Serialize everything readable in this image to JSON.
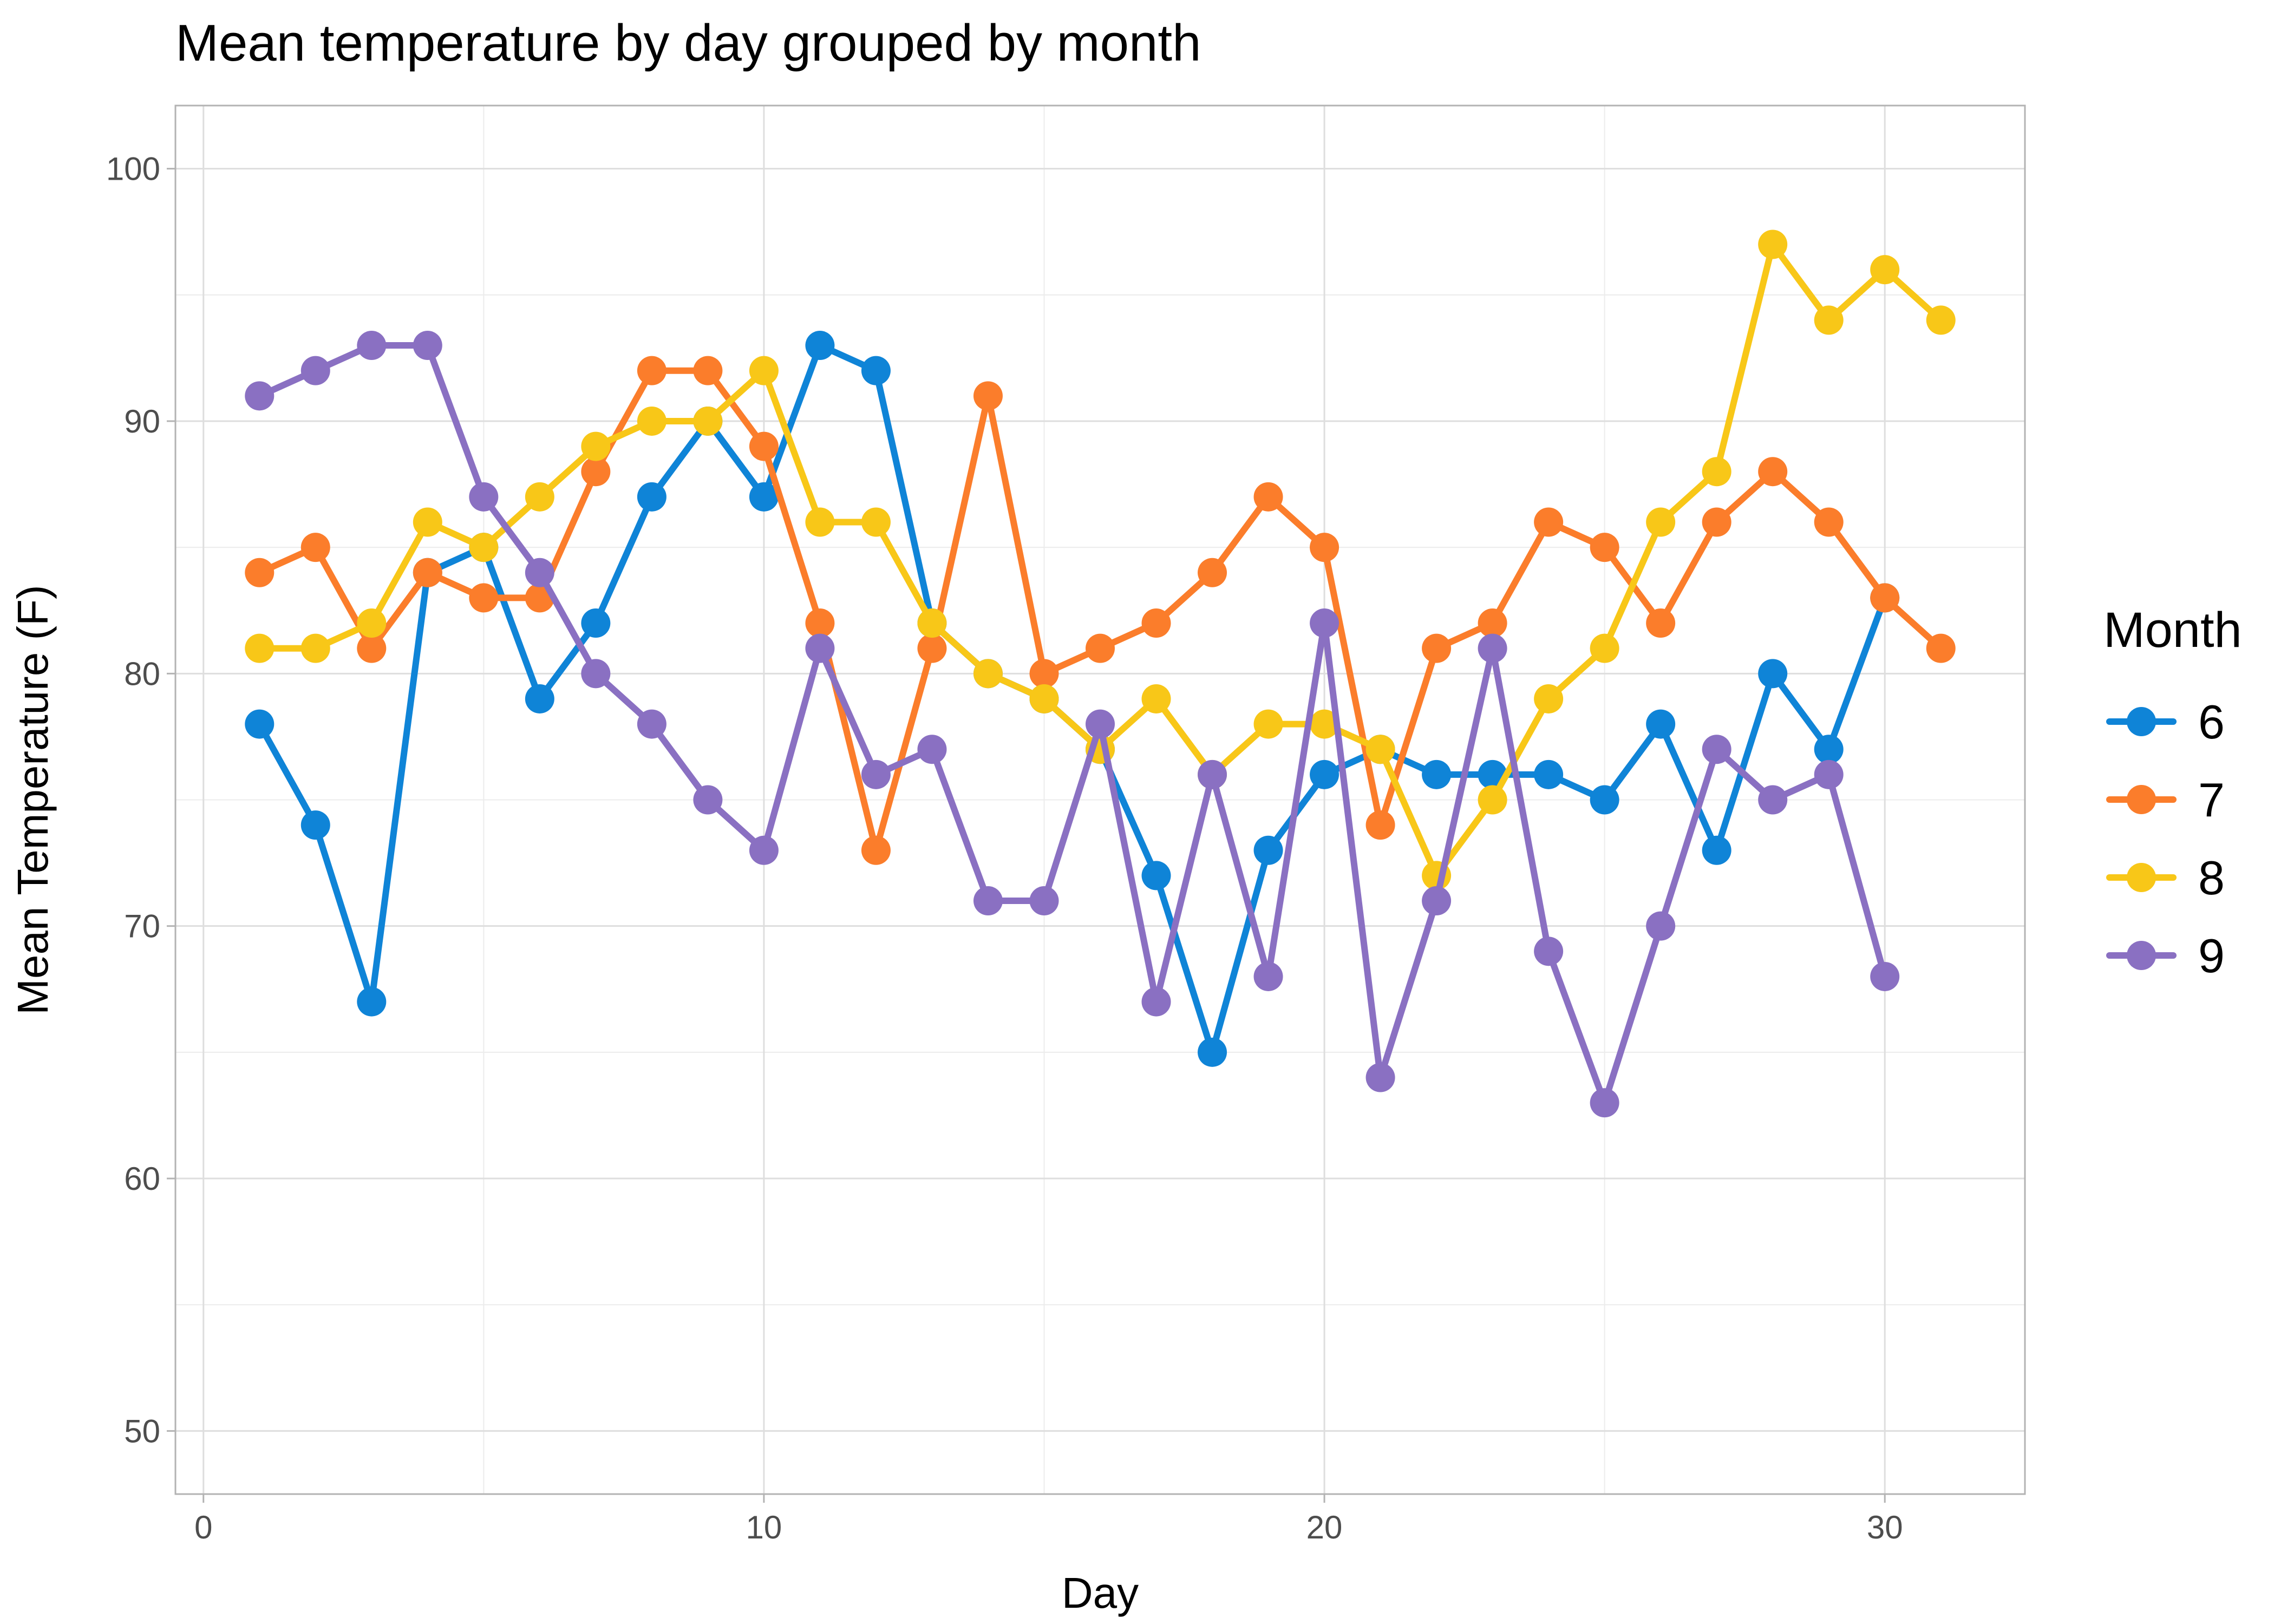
{
  "chart_data": {
    "type": "line",
    "title": "Mean temperature by day grouped by month",
    "xlabel": "Day",
    "ylabel": "Mean Temperature (F)",
    "xlim": [
      -0.5,
      32.5
    ],
    "ylim": [
      47.5,
      102.5
    ],
    "x_ticks": [
      0,
      10,
      20,
      30
    ],
    "x_minor_ticks": [
      5,
      15,
      25
    ],
    "y_ticks": [
      50,
      60,
      70,
      80,
      90,
      100
    ],
    "y_minor_ticks": [
      55,
      65,
      75,
      85,
      95
    ],
    "x_tick_labels": [
      "0",
      "10",
      "20",
      "30"
    ],
    "y_tick_labels": [
      "50",
      "60",
      "70",
      "80",
      "90",
      "100"
    ],
    "grid": true,
    "markers": true,
    "legend": {
      "title": "Month",
      "position": "right"
    },
    "series": [
      {
        "name": "6",
        "color": "#0f84d7",
        "x": [
          1,
          2,
          3,
          4,
          5,
          6,
          7,
          8,
          9,
          10,
          11,
          12,
          13,
          14,
          15,
          16,
          17,
          18,
          19,
          20,
          21,
          22,
          23,
          24,
          25,
          26,
          27,
          28,
          29,
          30
        ],
        "y": [
          78,
          74,
          67,
          84,
          85,
          79,
          82,
          87,
          90,
          87,
          93,
          92,
          82,
          80,
          79,
          77,
          72,
          65,
          73,
          76,
          77,
          76,
          76,
          76,
          75,
          78,
          73,
          80,
          77,
          83
        ]
      },
      {
        "name": "7",
        "color": "#fb7d2b",
        "x": [
          1,
          2,
          3,
          4,
          5,
          6,
          7,
          8,
          9,
          10,
          11,
          12,
          13,
          14,
          15,
          16,
          17,
          18,
          19,
          20,
          21,
          22,
          23,
          24,
          25,
          26,
          27,
          28,
          29,
          30,
          31
        ],
        "y": [
          84,
          85,
          81,
          84,
          83,
          83,
          88,
          92,
          92,
          89,
          82,
          73,
          81,
          91,
          80,
          81,
          82,
          84,
          87,
          85,
          74,
          81,
          82,
          86,
          85,
          82,
          86,
          88,
          86,
          83,
          81
        ]
      },
      {
        "name": "8",
        "color": "#f8c718",
        "x": [
          1,
          2,
          3,
          4,
          5,
          6,
          7,
          8,
          9,
          10,
          11,
          12,
          13,
          14,
          15,
          16,
          17,
          18,
          19,
          20,
          21,
          22,
          23,
          24,
          25,
          26,
          27,
          28,
          29,
          30,
          31
        ],
        "y": [
          81,
          81,
          82,
          86,
          85,
          87,
          89,
          90,
          90,
          92,
          86,
          86,
          82,
          80,
          79,
          77,
          79,
          76,
          78,
          78,
          77,
          72,
          75,
          79,
          81,
          86,
          88,
          97,
          94,
          96,
          94
        ]
      },
      {
        "name": "9",
        "color": "#8a70c2",
        "x": [
          1,
          2,
          3,
          4,
          5,
          6,
          7,
          8,
          9,
          10,
          11,
          12,
          13,
          14,
          15,
          16,
          17,
          18,
          19,
          20,
          21,
          22,
          23,
          24,
          25,
          26,
          27,
          28,
          29,
          30
        ],
        "y": [
          91,
          92,
          93,
          93,
          87,
          84,
          80,
          78,
          75,
          73,
          81,
          76,
          77,
          71,
          71,
          78,
          67,
          76,
          68,
          82,
          64,
          71,
          81,
          69,
          63,
          70,
          77,
          75,
          76,
          68
        ]
      }
    ]
  }
}
